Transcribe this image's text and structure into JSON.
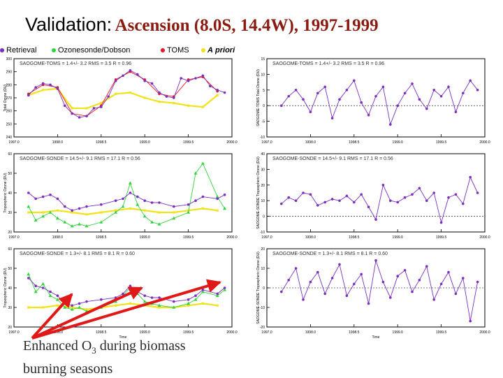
{
  "title": {
    "lead": "Validation:",
    "rest": "Ascension (8.0S, 14.4W), 1997-1999"
  },
  "legend": {
    "retrieval": "Retrieval",
    "ozonesonde": "Ozonesonde/Dobson",
    "toms": "TOMS",
    "apriori_a": "A",
    "apriori_b": "priori"
  },
  "annotation": {
    "line1": "Enhanced O",
    "sub": "3",
    "line1_rest": " during biomass",
    "line2": "burning seasons"
  },
  "colors": {
    "retrieval": "#7b2fbf",
    "sonde": "#32d33a",
    "toms": "#e8141e",
    "apriori": "#f2e21a",
    "arrow": "#e01818"
  },
  "chart_data": [
    {
      "type": "line",
      "id": "total-ozone",
      "stats": "SAOGOME-TOMS = 1.4+/- 3.2 RMS = 3.5 R = 0.96",
      "ylabel": "Total Ozone (DU)",
      "xlabel": "",
      "xlim": [
        1997.0,
        2000.0
      ],
      "ylim": [
        240,
        300
      ],
      "xticks": [
        "1997.0",
        "1998.0",
        "1998.5",
        "1999.0",
        "1999.5",
        "2000.0"
      ],
      "yticks": [
        240,
        250,
        260,
        270,
        280,
        290,
        300
      ],
      "series": [
        {
          "name": "Retrieval",
          "x": [
            1997.2,
            1997.3,
            1997.4,
            1997.5,
            1997.6,
            1997.7,
            1997.8,
            1997.9,
            1998.0,
            1998.1,
            1998.2,
            1998.3,
            1998.4,
            1998.5,
            1998.6,
            1998.7,
            1998.8,
            1998.9,
            1999.0,
            1999.1,
            1999.2,
            1999.3,
            1999.4,
            1999.5,
            1999.6,
            1999.7,
            1999.8,
            1999.9
          ],
          "y": [
            272,
            278,
            281,
            280,
            277,
            264,
            258,
            255,
            256,
            262,
            263,
            271,
            283,
            287,
            291,
            288,
            283,
            281,
            274,
            271,
            270,
            285,
            283,
            285,
            287,
            279,
            276,
            274
          ]
        },
        {
          "name": "TOMS",
          "x": [
            1997.2,
            1997.4,
            1997.6,
            1997.8,
            1998.0,
            1998.2,
            1998.4,
            1998.6,
            1998.8,
            1999.0,
            1999.2,
            1999.4,
            1999.6,
            1999.8
          ],
          "y": [
            273,
            280,
            278,
            258,
            256,
            264,
            284,
            290,
            284,
            273,
            271,
            284,
            286,
            275
          ]
        },
        {
          "name": "A priori",
          "x": [
            1997.2,
            1997.4,
            1997.6,
            1997.8,
            1998.0,
            1998.2,
            1998.4,
            1998.6,
            1998.8,
            1999.0,
            1999.2,
            1999.4,
            1999.6,
            1999.8
          ],
          "y": [
            272,
            276,
            277,
            262,
            262,
            266,
            273,
            274,
            270,
            267,
            266,
            264,
            263,
            272
          ]
        }
      ]
    },
    {
      "type": "scatter",
      "id": "total-ozone-diff",
      "stats": "SAOGOME-TOMS = 1.4+/- 3.2 RMS = 3.5 R = 0.96",
      "ylabel": "SAOGOME-TOMS Total Ozone (DU)",
      "xlim": [
        1997.0,
        2000.0
      ],
      "ylim": [
        -10,
        15
      ],
      "xticks": [
        "1997.0",
        "1998.0",
        "1998.5",
        "1999.0",
        "1999.5",
        "2000.0"
      ],
      "yticks": [
        -10,
        -5,
        0,
        5,
        10,
        15
      ],
      "series": [
        {
          "name": "Difference",
          "x": [
            1997.2,
            1997.3,
            1997.4,
            1997.5,
            1997.6,
            1997.7,
            1997.8,
            1997.9,
            1998.0,
            1998.1,
            1998.2,
            1998.3,
            1998.4,
            1998.5,
            1998.6,
            1998.7,
            1998.8,
            1998.9,
            1999.0,
            1999.1,
            1999.2,
            1999.3,
            1999.4,
            1999.5,
            1999.6,
            1999.7,
            1999.8,
            1999.9
          ],
          "y": [
            0,
            3,
            5,
            2,
            -2,
            4,
            6,
            -4,
            2,
            5,
            8,
            1,
            -3,
            3,
            6,
            -6,
            0,
            4,
            7,
            2,
            -1,
            5,
            3,
            6,
            -2,
            4,
            8,
            5
          ]
        }
      ]
    },
    {
      "type": "line",
      "id": "tropospheric-ozone",
      "stats": "SAOGOME-SONDE = 14.5+/- 9.1 RMS = 17.1 R = 0.56",
      "ylabel": "Tropospheric Ozone (DU)",
      "xlim": [
        1997.0,
        2000.0
      ],
      "ylim": [
        20,
        60
      ],
      "xticks": [
        "1997.0",
        "1998.0",
        "1998.5",
        "1999.0",
        "1999.5",
        "2000.0"
      ],
      "yticks": [
        20,
        30,
        40,
        50,
        60
      ],
      "series": [
        {
          "name": "Retrieval",
          "x": [
            1997.2,
            1997.3,
            1997.4,
            1997.5,
            1997.6,
            1997.7,
            1997.8,
            1997.9,
            1998.0,
            1998.2,
            1998.4,
            1998.5,
            1998.6,
            1998.7,
            1998.8,
            1998.9,
            1999.0,
            1999.2,
            1999.4,
            1999.5,
            1999.6,
            1999.8,
            1999.9
          ],
          "y": [
            40,
            37,
            38,
            39,
            37,
            33,
            31,
            32,
            33,
            34,
            36,
            37,
            40,
            38,
            36,
            35,
            35,
            33,
            34,
            36,
            38,
            37,
            39
          ]
        },
        {
          "name": "Ozonesonde",
          "x": [
            1997.2,
            1997.3,
            1997.4,
            1997.5,
            1997.6,
            1997.7,
            1997.8,
            1997.9,
            1998.0,
            1998.2,
            1998.4,
            1998.5,
            1998.6,
            1998.7,
            1998.8,
            1998.9,
            1999.0,
            1999.2,
            1999.4,
            1999.5,
            1999.6,
            1999.8,
            1999.9
          ],
          "y": [
            33,
            26,
            28,
            30,
            27,
            25,
            23,
            24,
            23,
            25,
            30,
            33,
            45,
            34,
            28,
            25,
            24,
            27,
            30,
            50,
            55,
            38,
            32
          ]
        },
        {
          "name": "A priori",
          "x": [
            1997.2,
            1997.4,
            1997.6,
            1997.8,
            1998.0,
            1998.2,
            1998.4,
            1998.6,
            1998.8,
            1999.0,
            1999.2,
            1999.4,
            1999.6,
            1999.8
          ],
          "y": [
            30,
            30,
            31,
            30,
            29,
            30,
            31,
            32,
            31,
            30,
            30,
            31,
            32,
            31
          ]
        }
      ]
    },
    {
      "type": "scatter",
      "id": "tropospheric-ozone-diff",
      "stats": "SAOGOME-SONDE = 14.5+/- 9.1 RMS = 17.1 R = 0.56",
      "ylabel": "SAOGOME-SONDE Tropospheric Ozone (DU)",
      "xlim": [
        1997.0,
        2000.0
      ],
      "ylim": [
        -10,
        40
      ],
      "xticks": [
        "1997.0",
        "1998.0",
        "1998.5",
        "1999.0",
        "1999.5",
        "2000.0"
      ],
      "yticks": [
        -10,
        0,
        10,
        20,
        30,
        40
      ],
      "series": [
        {
          "name": "Difference",
          "x": [
            1997.2,
            1997.3,
            1997.4,
            1997.5,
            1997.6,
            1997.7,
            1997.8,
            1997.9,
            1998.0,
            1998.1,
            1998.2,
            1998.3,
            1998.4,
            1998.5,
            1998.6,
            1998.7,
            1998.8,
            1998.9,
            1999.0,
            1999.1,
            1999.2,
            1999.3,
            1999.4,
            1999.5,
            1999.6,
            1999.7,
            1999.8,
            1999.9
          ],
          "y": [
            8,
            12,
            10,
            15,
            14,
            7,
            9,
            11,
            10,
            13,
            9,
            14,
            6,
            -2,
            20,
            10,
            9,
            12,
            14,
            18,
            10,
            15,
            -4,
            12,
            14,
            8,
            25,
            15
          ]
        }
      ]
    },
    {
      "type": "line",
      "id": "tropospheric-ozone-2",
      "stats": "SAOGOME-SONDE = 1.3+/- 8.1 RMS = 8.1 R = 0.60",
      "ylabel": "Tropospheric Ozone (DU)",
      "xlabel": "Time",
      "xlim": [
        1997.0,
        2000.0
      ],
      "ylim": [
        20,
        60
      ],
      "xticks": [
        "1997.0",
        "1998.0",
        "1998.5",
        "1999.0",
        "1999.5",
        "2000.0"
      ],
      "yticks": [
        20,
        30,
        40,
        50,
        60
      ],
      "series": [
        {
          "name": "Retrieval",
          "x": [
            1997.2,
            1997.3,
            1997.4,
            1997.5,
            1997.6,
            1997.7,
            1997.8,
            1997.9,
            1998.0,
            1998.2,
            1998.4,
            1998.5,
            1998.6,
            1998.7,
            1998.8,
            1998.9,
            1999.0,
            1999.2,
            1999.4,
            1999.5,
            1999.6,
            1999.8,
            1999.9
          ],
          "y": [
            45,
            41,
            40,
            38,
            36,
            32,
            31,
            32,
            33,
            34,
            35,
            37,
            41,
            38,
            36,
            35,
            35,
            33,
            34,
            36,
            39,
            37,
            40
          ]
        },
        {
          "name": "Ozonesonde",
          "x": [
            1997.2,
            1997.3,
            1997.4,
            1997.5,
            1997.6,
            1997.7,
            1997.8,
            1997.9,
            1998.0,
            1998.2,
            1998.4,
            1998.5,
            1998.6,
            1998.7,
            1998.8,
            1998.9,
            1999.0,
            1999.2,
            1999.4,
            1999.5,
            1999.6,
            1999.8,
            1999.9
          ],
          "y": [
            47,
            38,
            42,
            36,
            34,
            30,
            29,
            30,
            28,
            30,
            33,
            36,
            40,
            37,
            33,
            32,
            31,
            30,
            32,
            34,
            38,
            36,
            39
          ]
        },
        {
          "name": "A priori",
          "x": [
            1997.2,
            1997.4,
            1997.6,
            1997.8,
            1998.0,
            1998.2,
            1998.4,
            1998.6,
            1998.8,
            1999.0,
            1999.2,
            1999.4,
            1999.6,
            1999.8
          ],
          "y": [
            30,
            30,
            31,
            30,
            29,
            30,
            31,
            32,
            31,
            30,
            30,
            31,
            32,
            31
          ]
        }
      ]
    },
    {
      "type": "scatter",
      "id": "tropospheric-ozone-2-diff",
      "stats": "SAOGOME-SONDE = 1.3+/- 8.1 RMS = 8.1 R = 0.60",
      "ylabel": "SAOGOME-SONDE Tropospheric Ozone (DU)",
      "xlabel": "Time",
      "xlim": [
        1997.0,
        2000.0
      ],
      "ylim": [
        -20,
        20
      ],
      "xticks": [
        "1997.0",
        "1998.0",
        "1998.5",
        "1999.0",
        "1999.5",
        "2000.0"
      ],
      "yticks": [
        -20,
        -10,
        0,
        10,
        20
      ],
      "series": [
        {
          "name": "Difference",
          "x": [
            1997.2,
            1997.3,
            1997.4,
            1997.5,
            1997.6,
            1997.7,
            1997.8,
            1997.9,
            1998.0,
            1998.1,
            1998.2,
            1998.3,
            1998.4,
            1998.5,
            1998.6,
            1998.7,
            1998.8,
            1998.9,
            1999.0,
            1999.1,
            1999.2,
            1999.3,
            1999.4,
            1999.5,
            1999.6,
            1999.7,
            1999.8,
            1999.9
          ],
          "y": [
            -2,
            4,
            10,
            -6,
            3,
            8,
            -3,
            5,
            12,
            -4,
            2,
            7,
            -8,
            14,
            3,
            -5,
            6,
            9,
            -2,
            4,
            11,
            -6,
            2,
            8,
            -3,
            5,
            -17,
            3
          ]
        }
      ]
    }
  ]
}
